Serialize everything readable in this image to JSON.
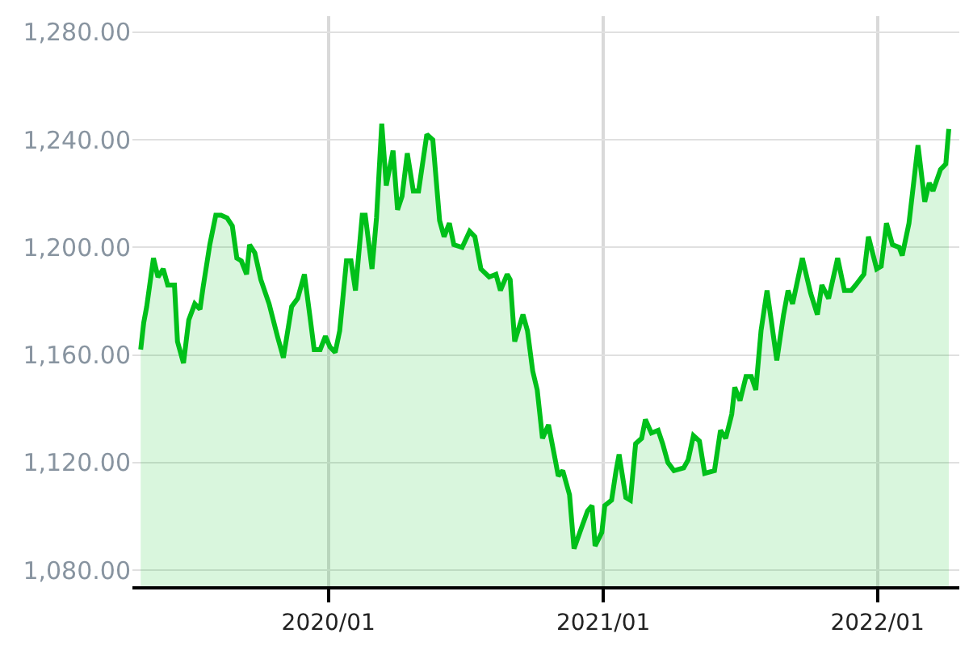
{
  "chart_data": {
    "type": "area",
    "x": [
      "2019-04-26",
      "2019-04-30",
      "2019-05-04",
      "2019-05-13",
      "2019-05-19",
      "2019-05-26",
      "2019-06-01",
      "2019-06-10",
      "2019-06-14",
      "2019-06-22",
      "2019-06-29",
      "2019-07-07",
      "2019-07-14",
      "2019-07-18",
      "2019-07-27",
      "2019-08-04",
      "2019-08-11",
      "2019-08-19",
      "2019-08-26",
      "2019-09-01",
      "2019-09-07",
      "2019-09-14",
      "2019-09-18",
      "2019-09-25",
      "2019-10-03",
      "2019-10-14",
      "2019-10-25",
      "2019-11-02",
      "2019-11-13",
      "2019-11-21",
      "2019-11-30",
      "2019-12-08",
      "2019-12-13",
      "2019-12-21",
      "2019-12-28",
      "2020-01-03",
      "2020-01-10",
      "2020-01-16",
      "2020-01-25",
      "2020-01-31",
      "2020-02-06",
      "2020-02-15",
      "2020-02-19",
      "2020-02-28",
      "2020-03-05",
      "2020-03-12",
      "2020-03-18",
      "2020-03-27",
      "2020-04-02",
      "2020-04-08",
      "2020-04-15",
      "2020-04-23",
      "2020-04-30",
      "2020-05-11",
      "2020-05-19",
      "2020-05-28",
      "2020-06-03",
      "2020-06-10",
      "2020-06-16",
      "2020-06-27",
      "2020-07-07",
      "2020-07-14",
      "2020-07-22",
      "2020-08-02",
      "2020-08-11",
      "2020-08-17",
      "2020-08-26",
      "2020-08-30",
      "2020-09-05",
      "2020-09-16",
      "2020-09-22",
      "2020-09-29",
      "2020-10-05",
      "2020-10-12",
      "2020-10-20",
      "2020-10-29",
      "2020-11-02",
      "2020-11-08",
      "2020-11-17",
      "2020-11-23",
      "2020-12-02",
      "2020-12-11",
      "2020-12-17",
      "2020-12-21",
      "2020-12-30",
      "2021-01-03",
      "2021-01-12",
      "2021-01-18",
      "2021-01-22",
      "2021-01-31",
      "2021-02-06",
      "2021-02-13",
      "2021-02-21",
      "2021-02-26",
      "2021-03-06",
      "2021-03-15",
      "2021-03-21",
      "2021-03-28",
      "2021-04-05",
      "2021-04-18",
      "2021-04-24",
      "2021-05-01",
      "2021-05-09",
      "2021-05-16",
      "2021-05-29",
      "2021-06-06",
      "2021-06-13",
      "2021-06-21",
      "2021-06-25",
      "2021-07-02",
      "2021-07-10",
      "2021-07-17",
      "2021-07-23",
      "2021-07-30",
      "2021-08-07",
      "2021-08-20",
      "2021-08-29",
      "2021-09-04",
      "2021-09-10",
      "2021-09-23",
      "2021-10-04",
      "2021-10-13",
      "2021-10-19",
      "2021-10-28",
      "2021-11-09",
      "2021-11-18",
      "2021-11-27",
      "2021-12-03",
      "2021-12-14",
      "2021-12-20",
      "2021-12-31",
      "2022-01-06",
      "2022-01-13",
      "2022-01-21",
      "2022-01-30",
      "2022-02-03",
      "2022-02-12",
      "2022-02-24",
      "2022-03-05",
      "2022-03-11",
      "2022-03-16",
      "2022-03-26",
      "2022-04-02",
      "2022-04-06"
    ],
    "series": [
      {
        "color": "#00c01a",
        "values": [
          1162,
          1172,
          1178,
          1196,
          1189,
          1192,
          1186,
          1186,
          1165,
          1157,
          1173,
          1179,
          1177,
          1185,
          1201,
          1212,
          1212,
          1211,
          1208,
          1196,
          1195,
          1190,
          1201,
          1198,
          1188,
          1179,
          1167,
          1159,
          1178,
          1181,
          1190,
          1173,
          1162,
          1162,
          1167,
          1163,
          1161,
          1169,
          1195,
          1195,
          1184,
          1212,
          1212,
          1192,
          1211,
          1246,
          1223,
          1236,
          1214,
          1219,
          1235,
          1221,
          1221,
          1242,
          1240,
          1210,
          1204,
          1209,
          1201,
          1200,
          1206,
          1204,
          1192,
          1189,
          1190,
          1184,
          1190,
          1188,
          1165,
          1175,
          1169,
          1154,
          1147,
          1129,
          1134,
          1121,
          1115,
          1117,
          1108,
          1088,
          1095,
          1102,
          1104,
          1089,
          1094,
          1104,
          1106,
          1117,
          1123,
          1107,
          1106,
          1127,
          1129,
          1136,
          1131,
          1132,
          1127,
          1120,
          1117,
          1118,
          1121,
          1130,
          1128,
          1116,
          1117,
          1132,
          1129,
          1138,
          1148,
          1143,
          1152,
          1152,
          1147,
          1169,
          1184,
          1158,
          1175,
          1184,
          1179,
          1196,
          1183,
          1175,
          1186,
          1181,
          1196,
          1184,
          1184,
          1186,
          1190,
          1204,
          1192,
          1193,
          1209,
          1201,
          1200,
          1197,
          1209,
          1238,
          1217,
          1224,
          1221,
          1229,
          1231,
          1244
        ]
      }
    ],
    "xlim": [
      "2019-04-15",
      "2022-04-20"
    ],
    "xticks": [
      {
        "value": "2020-01-01",
        "label": "2020/01"
      },
      {
        "value": "2021-01-01",
        "label": "2021/01"
      },
      {
        "value": "2022-01-01",
        "label": "2022/01"
      }
    ],
    "ylim": [
      1074,
      1286
    ],
    "yticks": [
      {
        "value": 1080,
        "label": "1,080.00"
      },
      {
        "value": 1120,
        "label": "1,120.00"
      },
      {
        "value": 1160,
        "label": "1,160.00"
      },
      {
        "value": 1200,
        "label": "1,200.00"
      },
      {
        "value": 1240,
        "label": "1,240.00"
      },
      {
        "value": 1280,
        "label": "1,280.00"
      }
    ],
    "grid": true,
    "legend": false,
    "marker": "none",
    "line_style": "solid"
  }
}
